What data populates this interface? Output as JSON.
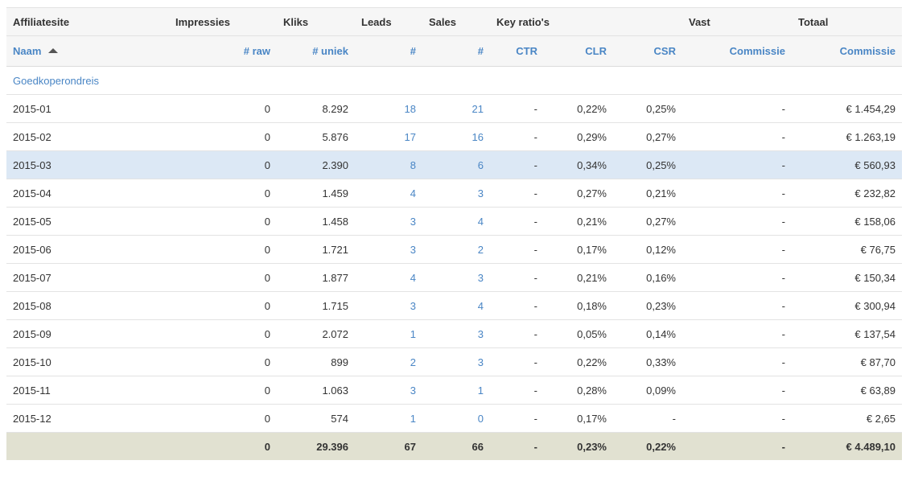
{
  "group_headers": {
    "affiliatesite": "Affiliatesite",
    "impressies": "Impressies",
    "kliks": "Kliks",
    "leads": "Leads",
    "sales": "Sales",
    "key_ratios": "Key ratio's",
    "vast": "Vast",
    "totaal": "Totaal"
  },
  "column_headers": {
    "naam": "Naam",
    "raw": "# raw",
    "uniek": "# uniek",
    "leads": "#",
    "sales": "#",
    "ctr": "CTR",
    "clr": "CLR",
    "csr": "CSR",
    "vast_commissie": "Commissie",
    "totaal_commissie": "Commissie"
  },
  "section_label": "Goedkoperondreis",
  "rows": [
    {
      "naam": "2015-01",
      "raw": "0",
      "uniek": "8.292",
      "leads": "18",
      "sales": "21",
      "ctr": "-",
      "clr": "0,22%",
      "csr": "0,25%",
      "vast": "-",
      "totaal": "€ 1.454,29"
    },
    {
      "naam": "2015-02",
      "raw": "0",
      "uniek": "5.876",
      "leads": "17",
      "sales": "16",
      "ctr": "-",
      "clr": "0,29%",
      "csr": "0,27%",
      "vast": "-",
      "totaal": "€ 1.263,19"
    },
    {
      "naam": "2015-03",
      "raw": "0",
      "uniek": "2.390",
      "leads": "8",
      "sales": "6",
      "ctr": "-",
      "clr": "0,34%",
      "csr": "0,25%",
      "vast": "-",
      "totaal": "€ 560,93"
    },
    {
      "naam": "2015-04",
      "raw": "0",
      "uniek": "1.459",
      "leads": "4",
      "sales": "3",
      "ctr": "-",
      "clr": "0,27%",
      "csr": "0,21%",
      "vast": "-",
      "totaal": "€ 232,82"
    },
    {
      "naam": "2015-05",
      "raw": "0",
      "uniek": "1.458",
      "leads": "3",
      "sales": "4",
      "ctr": "-",
      "clr": "0,21%",
      "csr": "0,27%",
      "vast": "-",
      "totaal": "€ 158,06"
    },
    {
      "naam": "2015-06",
      "raw": "0",
      "uniek": "1.721",
      "leads": "3",
      "sales": "2",
      "ctr": "-",
      "clr": "0,17%",
      "csr": "0,12%",
      "vast": "-",
      "totaal": "€ 76,75"
    },
    {
      "naam": "2015-07",
      "raw": "0",
      "uniek": "1.877",
      "leads": "4",
      "sales": "3",
      "ctr": "-",
      "clr": "0,21%",
      "csr": "0,16%",
      "vast": "-",
      "totaal": "€ 150,34"
    },
    {
      "naam": "2015-08",
      "raw": "0",
      "uniek": "1.715",
      "leads": "3",
      "sales": "4",
      "ctr": "-",
      "clr": "0,18%",
      "csr": "0,23%",
      "vast": "-",
      "totaal": "€ 300,94"
    },
    {
      "naam": "2015-09",
      "raw": "0",
      "uniek": "2.072",
      "leads": "1",
      "sales": "3",
      "ctr": "-",
      "clr": "0,05%",
      "csr": "0,14%",
      "vast": "-",
      "totaal": "€ 137,54"
    },
    {
      "naam": "2015-10",
      "raw": "0",
      "uniek": "899",
      "leads": "2",
      "sales": "3",
      "ctr": "-",
      "clr": "0,22%",
      "csr": "0,33%",
      "vast": "-",
      "totaal": "€ 87,70"
    },
    {
      "naam": "2015-11",
      "raw": "0",
      "uniek": "1.063",
      "leads": "3",
      "sales": "1",
      "ctr": "-",
      "clr": "0,28%",
      "csr": "0,09%",
      "vast": "-",
      "totaal": "€ 63,89"
    },
    {
      "naam": "2015-12",
      "raw": "0",
      "uniek": "574",
      "leads": "1",
      "sales": "0",
      "ctr": "-",
      "clr": "0,17%",
      "csr": "-",
      "vast": "-",
      "totaal": "€ 2,65"
    }
  ],
  "totals": {
    "naam": "",
    "raw": "0",
    "uniek": "29.396",
    "leads": "67",
    "sales": "66",
    "ctr": "-",
    "clr": "0,23%",
    "csr": "0,22%",
    "vast": "-",
    "totaal": "€ 4.489,10"
  },
  "colors": {
    "accent": "#4a86c5",
    "highlight_row": "#dce8f5",
    "totals_bg": "#e1e1d1",
    "header_bg": "#f6f6f6"
  },
  "icons": {
    "sort": "sort-asc-icon"
  }
}
